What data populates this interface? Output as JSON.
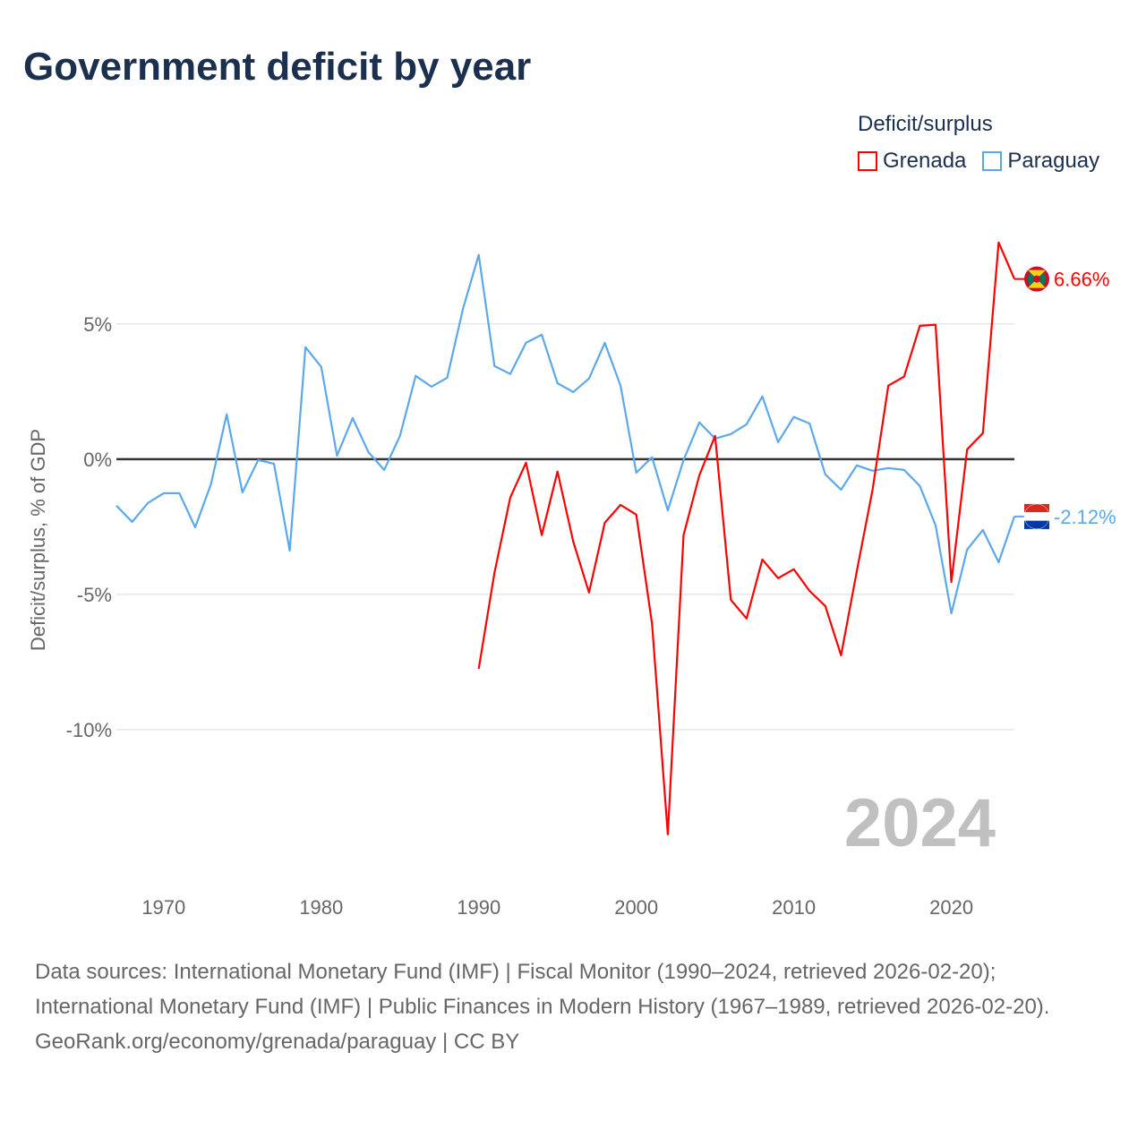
{
  "title": "Government deficit by year",
  "legend": {
    "title": "Deficit/surplus",
    "items": [
      {
        "name": "Grenada",
        "color": "#ff0000"
      },
      {
        "name": "Paraguay",
        "color": "#5ba8ec"
      }
    ]
  },
  "footer": {
    "sources": "Data sources: International Monetary Fund (IMF) | Fiscal Monitor (1990–2024, retrieved 2026-02-20); International Monetary Fund (IMF) | Public Finances in Modern History (1967–1989, retrieved 2026-02-20).",
    "credit": "GeoRank.org/economy/grenada/paraguay | CC BY"
  },
  "chart_data": {
    "type": "line",
    "title": "Government deficit by year",
    "xlabel": "",
    "ylabel": "Deficit/surplus, % of GDP",
    "xlim": [
      1967,
      2024
    ],
    "ylim": [
      -14.8,
      8.7
    ],
    "x_ticks": [
      1970,
      1980,
      1990,
      2000,
      2010,
      2020
    ],
    "y_ticks": [
      {
        "v": 5,
        "label": "5%"
      },
      {
        "v": 0,
        "label": "0%"
      },
      {
        "v": -5,
        "label": "-5%"
      },
      {
        "v": -10,
        "label": "-10%"
      }
    ],
    "year_watermark": "2024",
    "series": [
      {
        "name": "Paraguay",
        "color": "#5ba8ec",
        "start_year": 1967,
        "end_label": "-2.12%",
        "values": [
          -1.72,
          -2.32,
          -1.62,
          -1.26,
          -1.26,
          -2.52,
          -0.93,
          1.66,
          -1.23,
          -0.03,
          -0.17,
          -3.38,
          4.14,
          3.41,
          0.13,
          1.52,
          0.26,
          -0.4,
          0.86,
          3.08,
          2.68,
          3.01,
          5.56,
          7.55,
          3.44,
          3.15,
          4.3,
          4.6,
          2.81,
          2.48,
          2.98,
          4.3,
          2.72,
          -0.5,
          0.07,
          -1.89,
          -0.03,
          1.36,
          0.76,
          0.93,
          1.29,
          2.32,
          0.63,
          1.56,
          1.32,
          -0.56,
          -1.13,
          -0.23,
          -0.43,
          -0.33,
          -0.4,
          -0.99,
          -2.45,
          -5.7,
          -3.34,
          -2.62,
          -3.81,
          -2.12
        ]
      },
      {
        "name": "Grenada",
        "color": "#ff0000",
        "start_year": 1990,
        "end_label": "6.66%",
        "values": [
          -7.75,
          -4.2,
          -1.42,
          -0.13,
          -2.81,
          -0.46,
          -3.05,
          -4.93,
          -2.35,
          -1.69,
          -2.05,
          -6.09,
          -13.87,
          -2.81,
          -0.6,
          0.86,
          -5.2,
          -5.89,
          -3.71,
          -4.4,
          -4.07,
          -4.87,
          -5.43,
          -7.25,
          -4.14,
          -1.13,
          2.72,
          3.05,
          4.93,
          4.97,
          -4.54,
          0.36,
          0.96,
          8.01,
          6.66
        ]
      }
    ]
  }
}
